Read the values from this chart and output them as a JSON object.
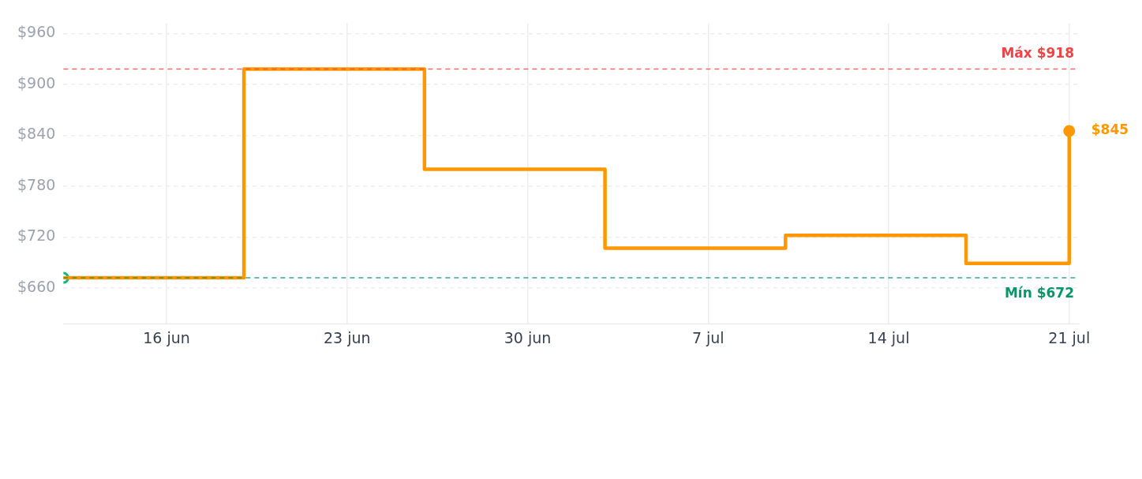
{
  "chart_data": {
    "type": "step",
    "xlim": [
      "--06-12",
      "--07-21T09:00"
    ],
    "xticks": [
      {
        "value": "--06-16",
        "label": "16 jun"
      },
      {
        "value": "--06-23",
        "label": "23 jun"
      },
      {
        "value": "--06-30",
        "label": "30 jun"
      },
      {
        "value": "--07-07",
        "label": "7 jul"
      },
      {
        "value": "--07-14",
        "label": "14 jul"
      },
      {
        "value": "--07-21",
        "label": "21 jul"
      }
    ],
    "ylim": [
      618,
      972
    ],
    "yticks": [
      {
        "value": 660,
        "label": "$660"
      },
      {
        "value": 720,
        "label": "$720"
      },
      {
        "value": 780,
        "label": "$780"
      },
      {
        "value": 840,
        "label": "$840"
      },
      {
        "value": 900,
        "label": "$900"
      },
      {
        "value": 960,
        "label": "$960"
      }
    ],
    "grid": true,
    "marker": "none",
    "line_style": "solid",
    "series": [
      {
        "color": "#ff9800",
        "x": [
          "--06-12",
          "--06-19",
          "--06-26",
          "--07-03",
          "--07-10",
          "--07-17",
          "--07-21"
        ],
        "values": [
          672,
          918,
          800,
          707,
          722,
          689,
          845
        ]
      },
      {
        "type": "scatter",
        "marker": "circle",
        "color": "#10b981",
        "x": [
          "--06-12"
        ],
        "values": [
          672
        ]
      },
      {
        "type": "scatter",
        "marker": "circle",
        "color": "#ff9800",
        "x": [
          "--07-21"
        ],
        "values": [
          845
        ]
      }
    ],
    "ref_lines": [
      {
        "axis": "y",
        "value": 918,
        "label": "Máx $918",
        "color": "#ef4444",
        "line_style": "dashed"
      },
      {
        "axis": "y",
        "value": 672,
        "label": "Mín $672",
        "color": "#059669",
        "line_style": "dashed"
      }
    ],
    "annotations": [
      {
        "text": "$845",
        "x": "--07-21",
        "y": 845
      }
    ]
  }
}
